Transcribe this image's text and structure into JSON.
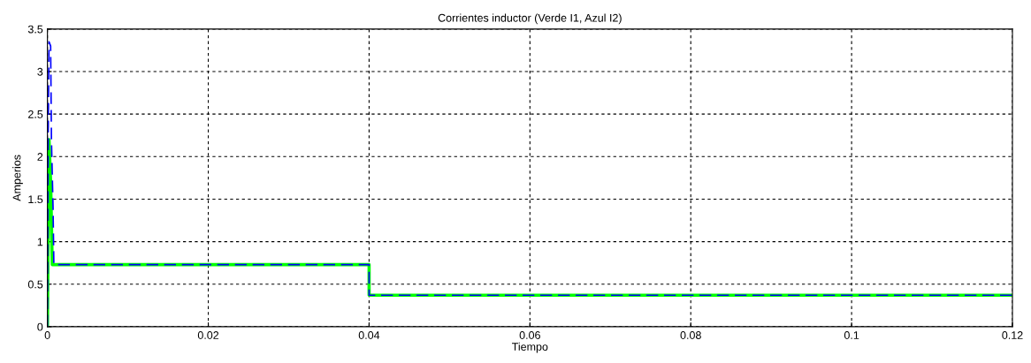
{
  "chart_data": {
    "type": "line",
    "title": "Corrientes inductor (Verde I1, Azul I2)",
    "xlabel": "Tiempo",
    "ylabel": "Amperios",
    "xlim": [
      0,
      0.12
    ],
    "xticks": [
      0,
      0.02,
      0.04,
      0.06,
      0.08,
      0.1,
      0.12
    ],
    "ylim": [
      0,
      3.5
    ],
    "yticks": [
      0,
      0.5,
      1,
      1.5,
      2,
      2.5,
      3,
      3.5
    ],
    "grid": true,
    "series": [
      {
        "color": "#00ff00",
        "line_style": "solid",
        "x": [
          0,
          0.0001,
          0.0002,
          0.0004,
          0.0006,
          0.04,
          0.04,
          0.12
        ],
        "values": [
          0,
          1.3,
          2.2,
          1.7,
          0.73,
          0.73,
          0.37,
          0.37
        ]
      },
      {
        "color": "#0000ff",
        "line_style": "dashed",
        "x": [
          0,
          5e-05,
          0.0001,
          0.0002,
          0.0004,
          0.0005,
          0.0007,
          0.0008,
          0.04,
          0.04,
          0.12
        ],
        "values": [
          0,
          1.3,
          2.3,
          3.35,
          3.3,
          2.2,
          1.4,
          0.73,
          0.73,
          0.37,
          0.37
        ]
      }
    ]
  }
}
